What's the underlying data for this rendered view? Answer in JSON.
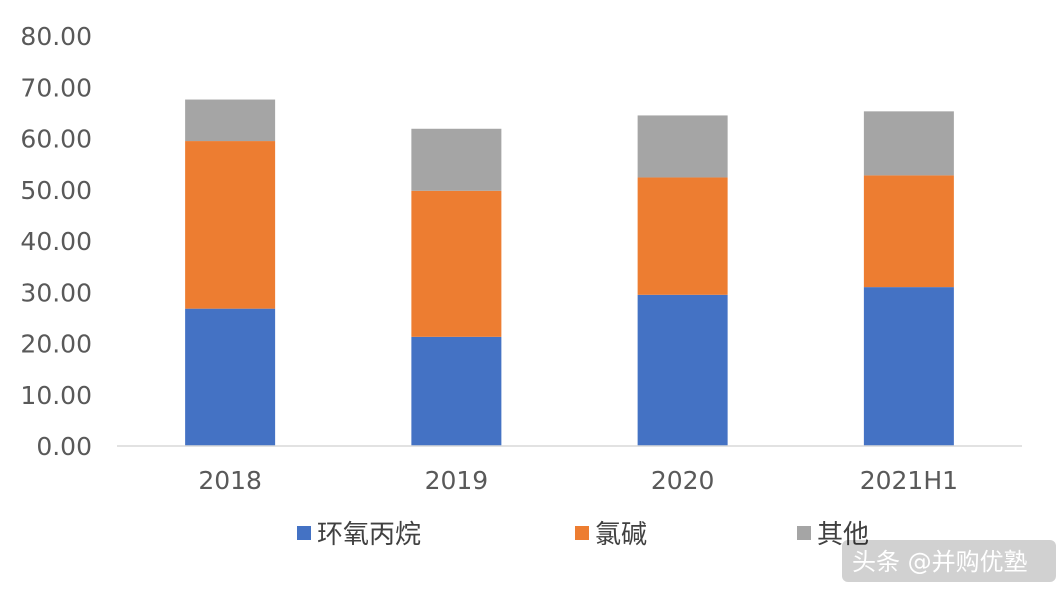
{
  "chart_data": {
    "type": "bar",
    "stacked": true,
    "categories": [
      "2018",
      "2019",
      "2020",
      "2021H1"
    ],
    "series": [
      {
        "name": "环氧丙烷",
        "color": "#4472c4",
        "values": [
          26.8,
          21.3,
          29.5,
          31.0
        ]
      },
      {
        "name": "氯碱",
        "color": "#ed7d31",
        "values": [
          32.7,
          28.5,
          22.9,
          21.8
        ]
      },
      {
        "name": "其他",
        "color": "#a5a5a5",
        "values": [
          8.1,
          12.1,
          12.1,
          12.5
        ]
      }
    ],
    "yticks": [
      "0.00",
      "10.00",
      "20.00",
      "30.00",
      "40.00",
      "50.00",
      "60.00",
      "70.00",
      "80.00"
    ],
    "ylim": [
      0,
      80
    ],
    "grid": false,
    "legend_position": "bottom"
  },
  "watermark": "头条 @并购优塾"
}
